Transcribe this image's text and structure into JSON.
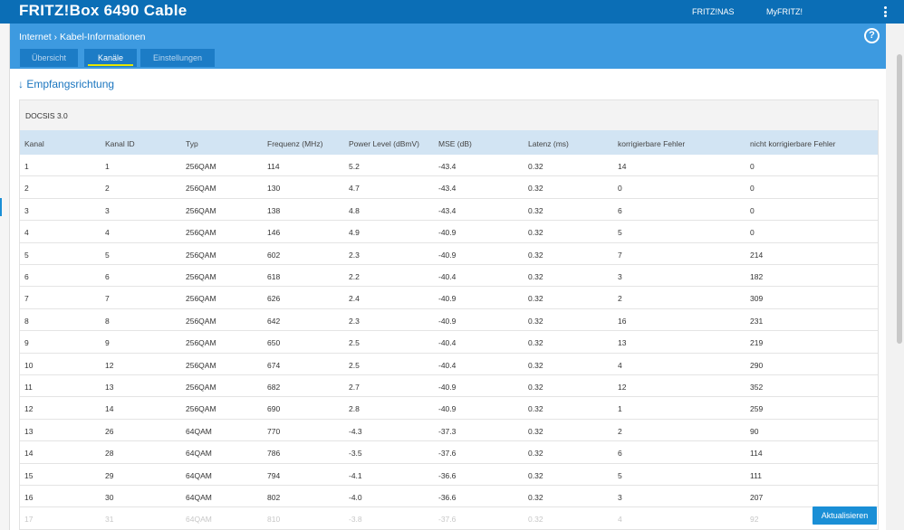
{
  "app": {
    "title": "FRITZ!Box 6490 Cable"
  },
  "topnav": {
    "nas": "FRITZ!NAS",
    "myfritz": "MyFRITZ!"
  },
  "breadcrumb": {
    "parent": "Internet",
    "separator": "›",
    "current": "Kabel-Informationen"
  },
  "help_label": "?",
  "tabs": [
    {
      "label": "Übersicht",
      "active": false
    },
    {
      "label": "Kanäle",
      "active": true
    },
    {
      "label": "Einstellungen",
      "active": false
    }
  ],
  "section": {
    "arrow": "↓",
    "title": "Empfangsrichtung"
  },
  "table": {
    "caption": "DOCSIS 3.0",
    "headers": [
      "Kanal",
      "Kanal ID",
      "Typ",
      "Frequenz (MHz)",
      "Power Level (dBmV)",
      "MSE (dB)",
      "Latenz (ms)",
      "korrigierbare Fehler",
      "nicht korrigierbare Fehler"
    ],
    "rows": [
      [
        "1",
        "1",
        "256QAM",
        "114",
        "5.2",
        "-43.4",
        "0.32",
        "14",
        "0"
      ],
      [
        "2",
        "2",
        "256QAM",
        "130",
        "4.7",
        "-43.4",
        "0.32",
        "0",
        "0"
      ],
      [
        "3",
        "3",
        "256QAM",
        "138",
        "4.8",
        "-43.4",
        "0.32",
        "6",
        "0"
      ],
      [
        "4",
        "4",
        "256QAM",
        "146",
        "4.9",
        "-40.9",
        "0.32",
        "5",
        "0"
      ],
      [
        "5",
        "5",
        "256QAM",
        "602",
        "2.3",
        "-40.9",
        "0.32",
        "7",
        "214"
      ],
      [
        "6",
        "6",
        "256QAM",
        "618",
        "2.2",
        "-40.4",
        "0.32",
        "3",
        "182"
      ],
      [
        "7",
        "7",
        "256QAM",
        "626",
        "2.4",
        "-40.9",
        "0.32",
        "2",
        "309"
      ],
      [
        "8",
        "8",
        "256QAM",
        "642",
        "2.3",
        "-40.9",
        "0.32",
        "16",
        "231"
      ],
      [
        "9",
        "9",
        "256QAM",
        "650",
        "2.5",
        "-40.4",
        "0.32",
        "13",
        "219"
      ],
      [
        "10",
        "12",
        "256QAM",
        "674",
        "2.5",
        "-40.4",
        "0.32",
        "4",
        "290"
      ],
      [
        "11",
        "13",
        "256QAM",
        "682",
        "2.7",
        "-40.9",
        "0.32",
        "12",
        "352"
      ],
      [
        "12",
        "14",
        "256QAM",
        "690",
        "2.8",
        "-40.9",
        "0.32",
        "1",
        "259"
      ],
      [
        "13",
        "26",
        "64QAM",
        "770",
        "-4.3",
        "-37.3",
        "0.32",
        "2",
        "90"
      ],
      [
        "14",
        "28",
        "64QAM",
        "786",
        "-3.5",
        "-37.6",
        "0.32",
        "6",
        "114"
      ],
      [
        "15",
        "29",
        "64QAM",
        "794",
        "-4.1",
        "-36.6",
        "0.32",
        "5",
        "111"
      ],
      [
        "16",
        "30",
        "64QAM",
        "802",
        "-4.0",
        "-36.6",
        "0.32",
        "3",
        "207"
      ],
      [
        "17",
        "31",
        "64QAM",
        "810",
        "-3.8",
        "-37.6",
        "0.32",
        "4",
        "92"
      ]
    ]
  },
  "buttons": {
    "refresh": "Aktualisieren"
  },
  "colors": {
    "topbar": "#0b6eb6",
    "panel_header": "#3d9ae0",
    "tab_bg": "#1c7cc6",
    "tab_active_underline": "#e6e600",
    "table_header": "#d2e4f3",
    "accent": "#1a75bf",
    "button": "#1a8fd6"
  }
}
